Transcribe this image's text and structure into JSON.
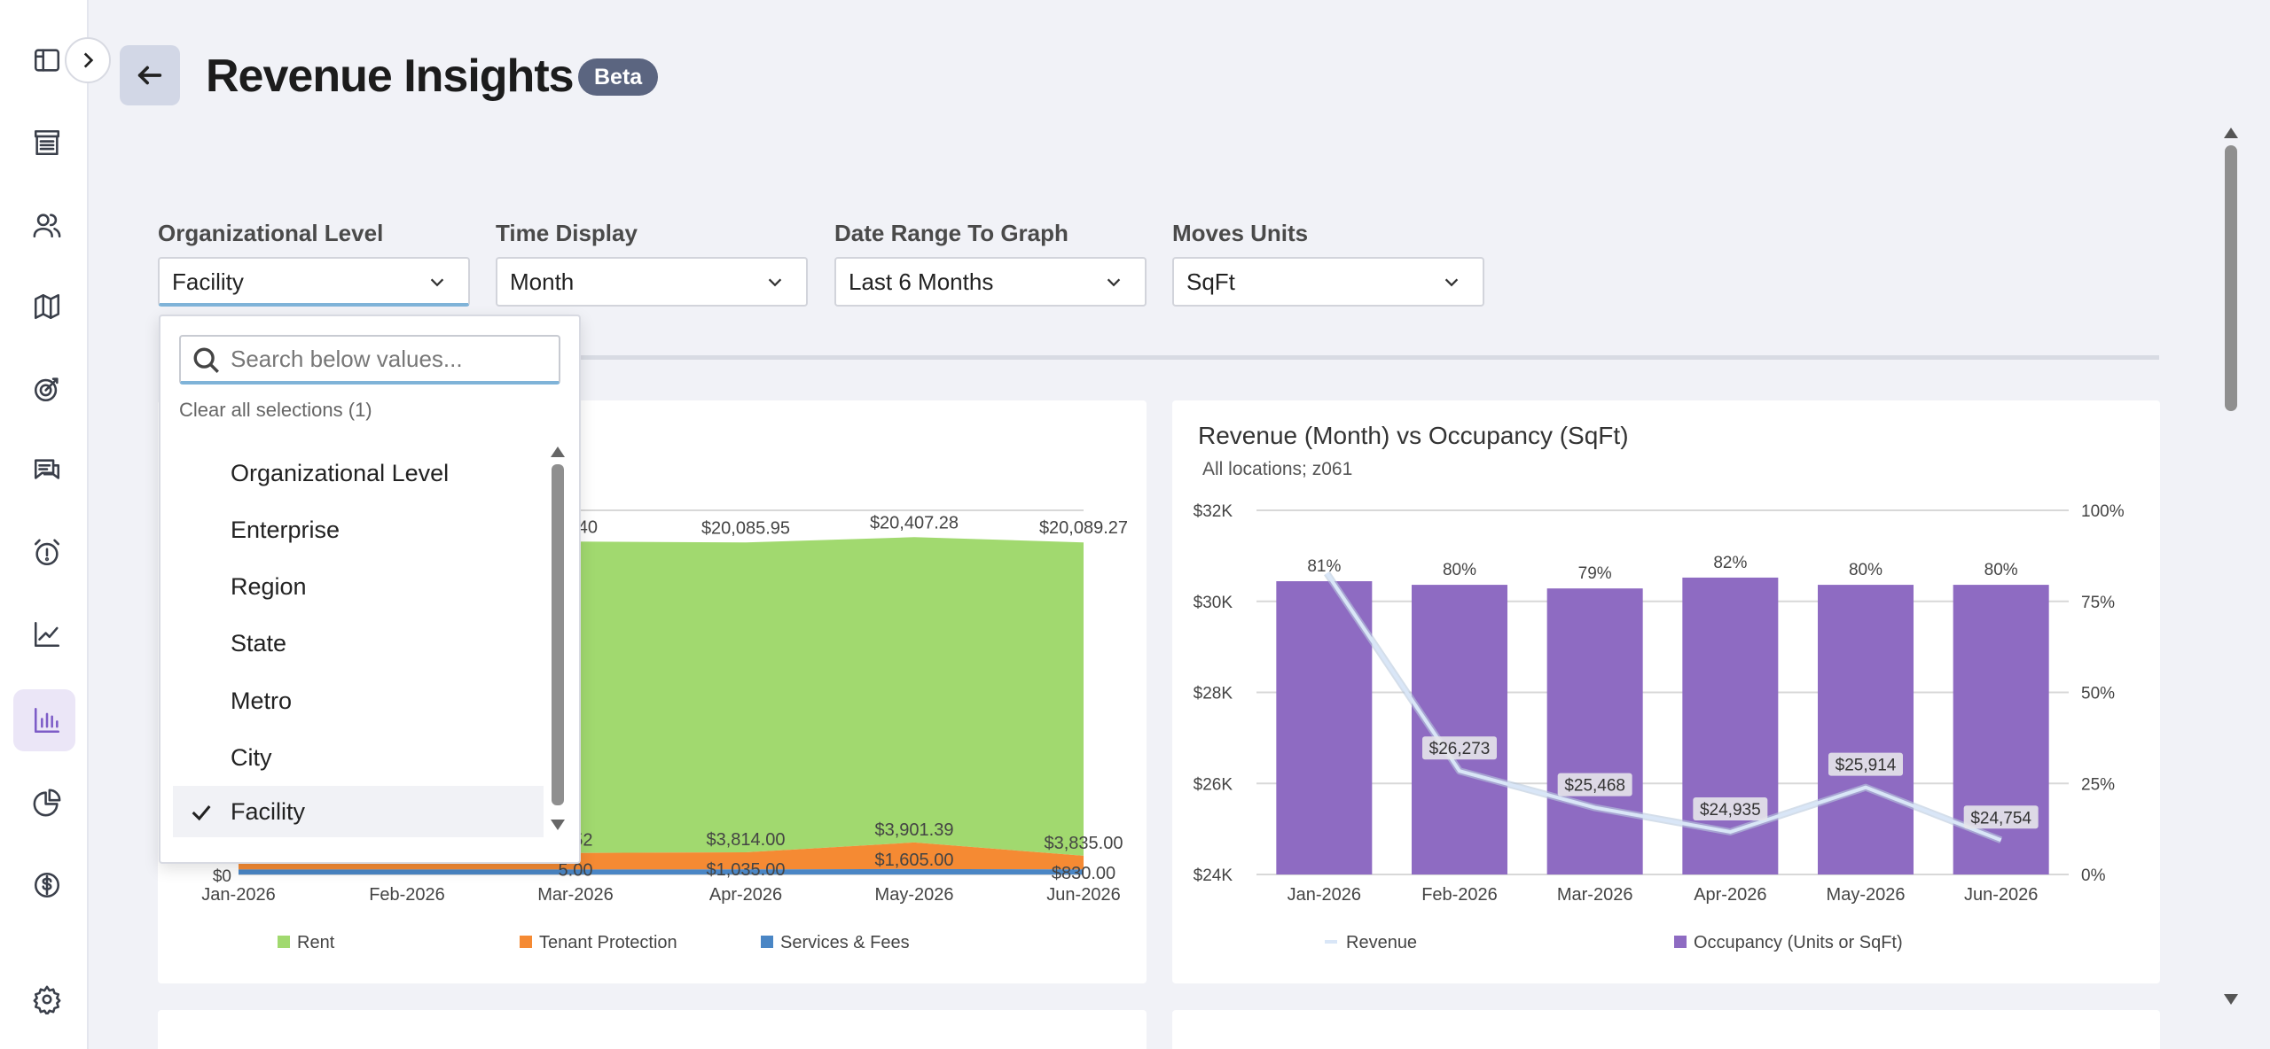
{
  "header": {
    "title": "Revenue Insights",
    "badge": "Beta"
  },
  "filters": [
    {
      "label": "Organizational Level",
      "value": "Facility"
    },
    {
      "label": "Time Display",
      "value": "Month"
    },
    {
      "label": "Date Range To Graph",
      "value": "Last 6 Months"
    },
    {
      "label": "Moves Units",
      "value": "SqFt"
    }
  ],
  "dropdown": {
    "placeholder": "Search below values...",
    "clear_label": "Clear all selections (1)",
    "options": [
      "Organizational Level",
      "Enterprise",
      "Region",
      "State",
      "Metro",
      "City",
      "Facility"
    ],
    "selected": "Facility"
  },
  "sidebar": {
    "icons": [
      "sidebar-toggle-icon",
      "storefront-icon",
      "users-icon",
      "map-icon",
      "target-icon",
      "chat-icon",
      "alarm-icon",
      "trend-line-icon",
      "bar-chart-icon",
      "pie-chart-icon",
      "dollar-icon",
      "gear-icon"
    ],
    "active": "bar-chart-icon",
    "accent": "#7d5cc7"
  },
  "chart_data": [
    {
      "type": "area",
      "title": "",
      "x": [
        "Jan-2026",
        "Feb-2026",
        "Mar-2026",
        "Apr-2026",
        "May-2026",
        "Jun-2026"
      ],
      "series": [
        {
          "name": "Services & Fees",
          "color": "#4a86c5",
          "values": [
            300,
            300,
            300,
            305,
            330,
            300
          ]
        },
        {
          "name": "Tenant Protection",
          "color": "#f58a33",
          "values": [
            1000,
            1000,
            null,
            1035.0,
            1605.0,
            830.0
          ]
        },
        {
          "name": "Rent",
          "color": "#a1d96f",
          "values": [
            3750,
            3750,
            null,
            3814.0,
            3901.39,
            3835.0
          ]
        }
      ],
      "top_labels": [
        "",
        "",
        "39.40",
        "$20,085.95",
        "$20,407.28",
        "$20,089.27"
      ],
      "mid_labels": [
        "",
        "",
        "2.52",
        "$3,814.00",
        "$3,901.39",
        "$3,835.00"
      ],
      "low_labels": [
        "",
        "",
        "5.00",
        "$1,035.00",
        "$1,605.00",
        "$830.00"
      ],
      "zero_label": "$0",
      "legend": [
        "Rent",
        "Tenant Protection",
        "Services & Fees"
      ],
      "legend_position": "bottom"
    },
    {
      "type": "bar+line",
      "title": "Revenue (Month) vs Occupancy (SqFt)",
      "subtitle": "All locations; z061",
      "x": [
        "Jan-2026",
        "Feb-2026",
        "Mar-2026",
        "Apr-2026",
        "May-2026",
        "Jun-2026"
      ],
      "left_axis": {
        "ticks": [
          "$24K",
          "$26K",
          "$28K",
          "$30K",
          "$32K"
        ],
        "range": [
          24000,
          32000
        ]
      },
      "right_axis": {
        "ticks": [
          "0%",
          "25%",
          "50%",
          "75%",
          "100%"
        ],
        "range": [
          0,
          100
        ]
      },
      "occupancy": {
        "name": "Occupancy (Units or SqFt)",
        "color": "#8e6bc2",
        "values": [
          81,
          80,
          79,
          82,
          80,
          80
        ],
        "labels": [
          "81%",
          "80%",
          "79%",
          "82%",
          "80%",
          "80%"
        ]
      },
      "revenue": {
        "name": "Revenue",
        "color": "#d9e6f7",
        "values": [
          30500,
          26273,
          25468,
          24935,
          25914,
          24754
        ],
        "labels": [
          "",
          "$26,273",
          "$25,468",
          "$24,935",
          "$25,914",
          "$24,754"
        ]
      },
      "legend": [
        "Revenue",
        "Occupancy (Units or SqFt)"
      ],
      "legend_position": "bottom"
    }
  ]
}
